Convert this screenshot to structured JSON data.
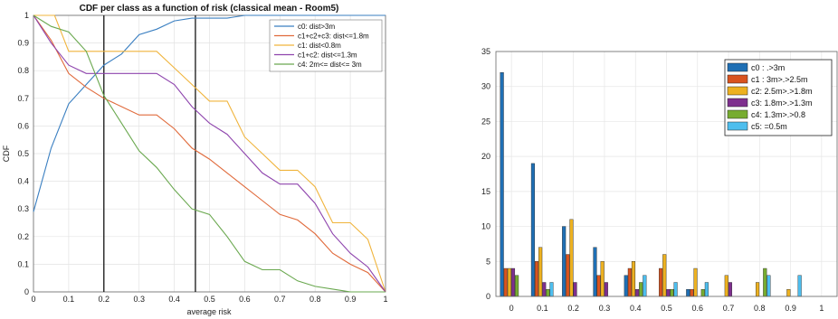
{
  "chart_data": [
    {
      "type": "line",
      "title": "CDF per class as a function of risk (classical mean - Room5)",
      "xlabel": "average risk",
      "ylabel": "CDF",
      "xlim": [
        0,
        1
      ],
      "ylim": [
        0,
        1
      ],
      "xticks": [
        "0",
        "0.1",
        "0.2",
        "0.3",
        "0.4",
        "0.5",
        "0.6",
        "0.7",
        "0.8",
        "0.9",
        "1"
      ],
      "yticks": [
        "0",
        "0.1",
        "0.2",
        "0.3",
        "0.4",
        "0.5",
        "0.6",
        "0.7",
        "0.8",
        "0.9",
        "1"
      ],
      "grid": true,
      "legend_position": "top-right",
      "vlines": [
        0.2,
        0.46
      ],
      "series": [
        {
          "name": "c0: dist>3m",
          "color": "#3a7fc1",
          "x": [
            0,
            0.05,
            0.1,
            0.15,
            0.2,
            0.25,
            0.3,
            0.35,
            0.4,
            0.45,
            0.5,
            0.55,
            0.6,
            1
          ],
          "y": [
            0.29,
            0.52,
            0.68,
            0.75,
            0.82,
            0.86,
            0.93,
            0.95,
            0.98,
            0.99,
            0.99,
            0.99,
            1,
            1
          ]
        },
        {
          "name": "c1+c2+c3: dist<=1.8m",
          "color": "#e06a3b",
          "x": [
            0,
            0.05,
            0.1,
            0.15,
            0.2,
            0.25,
            0.3,
            0.35,
            0.4,
            0.45,
            0.5,
            0.55,
            0.6,
            0.65,
            0.7,
            0.75,
            0.8,
            0.85,
            0.9,
            0.95,
            1
          ],
          "y": [
            1,
            0.91,
            0.79,
            0.74,
            0.7,
            0.67,
            0.64,
            0.64,
            0.59,
            0.52,
            0.48,
            0.43,
            0.38,
            0.33,
            0.28,
            0.26,
            0.21,
            0.14,
            0.1,
            0.07,
            0
          ]
        },
        {
          "name": "c1: dist<0.8m",
          "color": "#f0b43c",
          "x": [
            0,
            0.05,
            0.06,
            0.1,
            0.15,
            0.2,
            0.25,
            0.3,
            0.35,
            0.4,
            0.45,
            0.5,
            0.55,
            0.6,
            0.65,
            0.7,
            0.75,
            0.8,
            0.85,
            0.9,
            0.95,
            1
          ],
          "y": [
            1,
            1,
            1,
            0.87,
            0.87,
            0.87,
            0.87,
            0.87,
            0.87,
            0.81,
            0.75,
            0.69,
            0.69,
            0.56,
            0.5,
            0.44,
            0.44,
            0.38,
            0.25,
            0.25,
            0.19,
            0
          ]
        },
        {
          "name": "c1+c2: dist<=1.3m",
          "color": "#8e44ad",
          "x": [
            0,
            0.05,
            0.1,
            0.15,
            0.2,
            0.25,
            0.3,
            0.35,
            0.4,
            0.45,
            0.5,
            0.55,
            0.6,
            0.65,
            0.7,
            0.75,
            0.8,
            0.85,
            0.9,
            0.95,
            1
          ],
          "y": [
            1,
            0.9,
            0.82,
            0.79,
            0.79,
            0.79,
            0.79,
            0.79,
            0.75,
            0.67,
            0.61,
            0.57,
            0.5,
            0.43,
            0.39,
            0.39,
            0.32,
            0.21,
            0.14,
            0.09,
            0
          ]
        },
        {
          "name": "c4: 2m<= dist<= 3m",
          "color": "#6aa84f",
          "x": [
            0,
            0.05,
            0.1,
            0.15,
            0.2,
            0.25,
            0.3,
            0.35,
            0.4,
            0.45,
            0.5,
            0.55,
            0.6,
            0.65,
            0.7,
            0.75,
            0.8,
            0.85,
            0.9,
            0.95,
            1
          ],
          "y": [
            1,
            0.96,
            0.94,
            0.87,
            0.71,
            0.61,
            0.51,
            0.45,
            0.37,
            0.3,
            0.28,
            0.2,
            0.11,
            0.08,
            0.08,
            0.04,
            0.02,
            0.01,
            0,
            0,
            0
          ]
        }
      ]
    },
    {
      "type": "bar",
      "title": "",
      "xlabel": "",
      "ylabel": "",
      "xlim": [
        -0.05,
        1.05
      ],
      "ylim": [
        0,
        35
      ],
      "xticks": [
        "0",
        "0.1",
        "0.2",
        "0.3",
        "0.4",
        "0.5",
        "0.6",
        "0.7",
        "0.8",
        "0.9",
        "1"
      ],
      "yticks": [
        "0",
        "5",
        "10",
        "15",
        "20",
        "25",
        "30",
        "35"
      ],
      "grid": true,
      "legend_position": "top-right",
      "categories": [
        0,
        0.1,
        0.2,
        0.3,
        0.4,
        0.5,
        0.6,
        0.7,
        0.8,
        0.9,
        1
      ],
      "series": [
        {
          "name": "c0 : .>3m",
          "color": "#1f6fb4",
          "values": [
            32,
            19,
            10,
            7,
            3,
            0,
            1,
            0,
            0,
            0,
            0
          ]
        },
        {
          "name": "c1 : 3m>.>2.5m",
          "color": "#d9531e",
          "values": [
            4,
            5,
            6,
            3,
            4,
            4,
            1,
            0,
            0,
            0,
            0
          ]
        },
        {
          "name": "c2: 2.5m>.>1.8m",
          "color": "#edb120",
          "values": [
            4,
            7,
            11,
            5,
            5,
            6,
            4,
            3,
            2,
            1,
            0
          ]
        },
        {
          "name": "c3: 1.8m>.>1.3m",
          "color": "#7e2f8e",
          "values": [
            4,
            2,
            2,
            2,
            1,
            1,
            0,
            2,
            0,
            0,
            0
          ]
        },
        {
          "name": "c4: 1.3m>.>0.8",
          "color": "#77ac30",
          "values": [
            3,
            1,
            0,
            0,
            2,
            1,
            1,
            0,
            4,
            0,
            0
          ]
        },
        {
          "name": "c5: =0.5m",
          "color": "#4dbeee",
          "values": [
            0,
            2,
            0,
            0,
            3,
            2,
            2,
            0,
            3,
            3,
            0
          ]
        }
      ]
    }
  ]
}
